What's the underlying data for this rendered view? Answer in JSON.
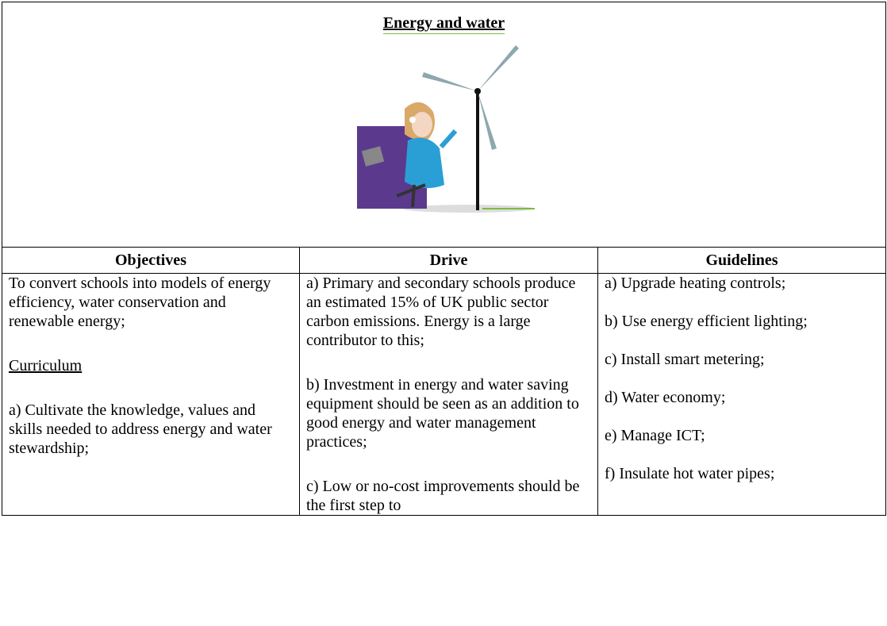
{
  "title": "Energy and water",
  "table": {
    "headers": [
      "Objectives",
      "Drive",
      "Guidelines"
    ],
    "objectives": {
      "intro": "To convert schools into models of energy efficiency, water conservation and renewable energy;",
      "curriculum_heading": "Curriculum",
      "items": [
        "a) Cultivate the knowledge, values and skills needed to address energy and water stewardship;"
      ]
    },
    "drive": [
      "a) Primary and secondary schools produce an estimated 15% of UK public sector carbon emissions. Energy is a large contributor to this;",
      "b) Investment in energy and water saving equipment should be seen as an addition to good energy and water management practices;",
      "c) Low or no-cost improvements should be the first step to"
    ],
    "guidelines": [
      "a) Upgrade heating controls;",
      "b) Use energy efficient lighting;",
      "c) Install smart metering;",
      "d) Water economy;",
      "e) Manage ICT;",
      "f) Insulate hot water pipes;"
    ]
  }
}
